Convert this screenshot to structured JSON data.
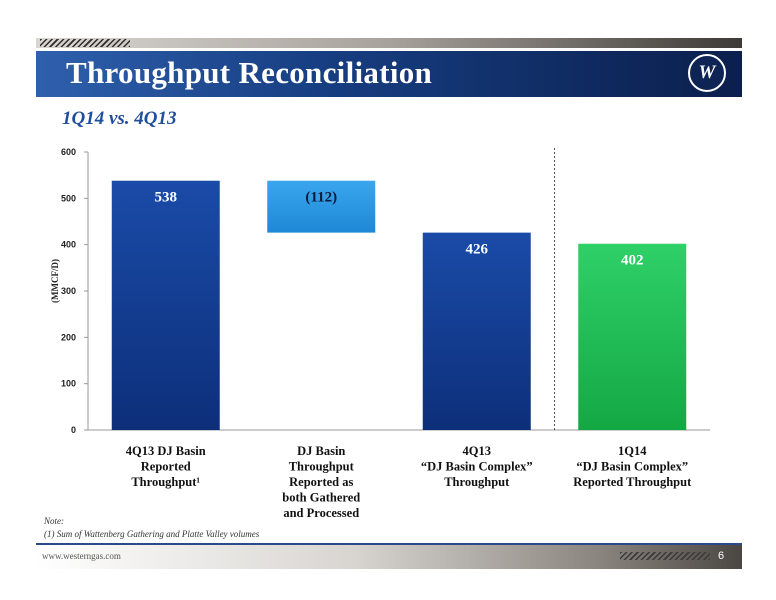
{
  "header": {
    "title": "Throughput Reconciliation",
    "subtitle": "1Q14 vs. 4Q13",
    "logo_letter": "W"
  },
  "chart_data": {
    "type": "bar",
    "subtype": "waterfall",
    "ylabel": "(MMCF/D)",
    "ylim": [
      0,
      600
    ],
    "yticks": [
      0,
      100,
      200,
      300,
      400,
      500,
      600
    ],
    "grid": false,
    "legend": "none",
    "categories": [
      [
        "4Q13 DJ Basin",
        "Reported",
        "Throughput¹"
      ],
      [
        "DJ Basin",
        "Throughput",
        "Reported as",
        "both Gathered",
        "and Processed"
      ],
      [
        "4Q13",
        "“DJ Basin Complex”",
        "Throughput"
      ],
      [
        "1Q14",
        "“DJ Basin Complex”",
        "Reported Throughput"
      ]
    ],
    "bars": [
      {
        "base": 0,
        "top": 538,
        "label": "538",
        "color": "#0d2f7a",
        "color_light": "#1a4ba8",
        "label_color": "#ffffff"
      },
      {
        "base": 426,
        "top": 538,
        "label": "(112)",
        "color": "#1e88d6",
        "color_light": "#3aa6ee",
        "label_color": "#0a1a3a"
      },
      {
        "base": 0,
        "top": 426,
        "label": "426",
        "color": "#0d2f7a",
        "color_light": "#1a4ba8",
        "label_color": "#ffffff"
      },
      {
        "base": 0,
        "top": 402,
        "label": "402",
        "color": "#14a843",
        "color_light": "#2fd068",
        "label_color": "#ffffff"
      }
    ],
    "separator_after_index": 2
  },
  "notes": {
    "label": "Note:",
    "footnote": "(1)    Sum of Wattenberg Gathering and Platte Valley volumes"
  },
  "footer": {
    "url": "www.westerngas.com",
    "page": "6"
  }
}
